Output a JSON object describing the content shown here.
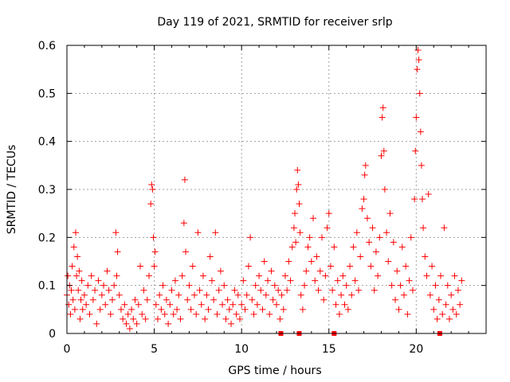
{
  "chart_data": {
    "type": "scatter",
    "title": "Day 119 of 2021, SRMTID for receiver srlp",
    "xlabel": "GPS time / hours",
    "ylabel": "SRMTID / TECUs",
    "xlim": [
      0,
      24
    ],
    "ylim": [
      0,
      0.6
    ],
    "xticks": [
      0,
      5,
      10,
      15,
      20
    ],
    "xtick_labels": [
      "0",
      "5",
      "10",
      "15",
      "20"
    ],
    "yticks": [
      0,
      0.1,
      0.2,
      0.3,
      0.4,
      0.5,
      0.6
    ],
    "ytick_labels": [
      "0",
      "0.1",
      "0.2",
      "0.3",
      "0.4",
      "0.5",
      "0.6"
    ],
    "grid": true,
    "marker": "+",
    "color": "#ff0000",
    "series": [
      {
        "name": "SRMTID",
        "points": [
          [
            0.0,
            0.08
          ],
          [
            0.05,
            0.12
          ],
          [
            0.1,
            0.06
          ],
          [
            0.15,
            0.1
          ],
          [
            0.2,
            0.04
          ],
          [
            0.25,
            0.09
          ],
          [
            0.3,
            0.14
          ],
          [
            0.35,
            0.07
          ],
          [
            0.4,
            0.18
          ],
          [
            0.45,
            0.05
          ],
          [
            0.5,
            0.21
          ],
          [
            0.55,
            0.12
          ],
          [
            0.6,
            0.16
          ],
          [
            0.65,
            0.09
          ],
          [
            0.7,
            0.13
          ],
          [
            0.75,
            0.03
          ],
          [
            0.8,
            0.07
          ],
          [
            0.85,
            0.11
          ],
          [
            0.9,
            0.05
          ],
          [
            1.0,
            0.08
          ],
          [
            1.1,
            0.06
          ],
          [
            1.2,
            0.1
          ],
          [
            1.3,
            0.04
          ],
          [
            1.4,
            0.12
          ],
          [
            1.5,
            0.07
          ],
          [
            1.6,
            0.09
          ],
          [
            1.7,
            0.02
          ],
          [
            1.8,
            0.11
          ],
          [
            1.9,
            0.05
          ],
          [
            2.0,
            0.08
          ],
          [
            2.1,
            0.1
          ],
          [
            2.2,
            0.06
          ],
          [
            2.3,
            0.13
          ],
          [
            2.4,
            0.09
          ],
          [
            2.5,
            0.04
          ],
          [
            2.6,
            0.07
          ],
          [
            2.7,
            0.1
          ],
          [
            2.8,
            0.21
          ],
          [
            2.85,
            0.12
          ],
          [
            2.9,
            0.17
          ],
          [
            3.0,
            0.08
          ],
          [
            3.1,
            0.05
          ],
          [
            3.2,
            0.03
          ],
          [
            3.3,
            0.06
          ],
          [
            3.4,
            0.02
          ],
          [
            3.5,
            0.04
          ],
          [
            3.6,
            0.01
          ],
          [
            3.7,
            0.05
          ],
          [
            3.8,
            0.03
          ],
          [
            3.9,
            0.07
          ],
          [
            4.0,
            0.02
          ],
          [
            4.1,
            0.06
          ],
          [
            4.2,
            0.14
          ],
          [
            4.3,
            0.04
          ],
          [
            4.4,
            0.09
          ],
          [
            4.5,
            0.03
          ],
          [
            4.6,
            0.07
          ],
          [
            4.7,
            0.12
          ],
          [
            4.8,
            0.27
          ],
          [
            4.85,
            0.31
          ],
          [
            4.9,
            0.3
          ],
          [
            4.95,
            0.2
          ],
          [
            5.0,
            0.14
          ],
          [
            5.05,
            0.17
          ],
          [
            5.1,
            0.06
          ],
          [
            5.2,
            0.03
          ],
          [
            5.3,
            0.08
          ],
          [
            5.4,
            0.05
          ],
          [
            5.5,
            0.1
          ],
          [
            5.6,
            0.04
          ],
          [
            5.7,
            0.07
          ],
          [
            5.8,
            0.02
          ],
          [
            5.9,
            0.06
          ],
          [
            6.0,
            0.09
          ],
          [
            6.1,
            0.04
          ],
          [
            6.2,
            0.11
          ],
          [
            6.3,
            0.05
          ],
          [
            6.4,
            0.08
          ],
          [
            6.5,
            0.03
          ],
          [
            6.6,
            0.12
          ],
          [
            6.7,
            0.23
          ],
          [
            6.75,
            0.32
          ],
          [
            6.8,
            0.17
          ],
          [
            6.9,
            0.07
          ],
          [
            7.0,
            0.1
          ],
          [
            7.1,
            0.05
          ],
          [
            7.2,
            0.14
          ],
          [
            7.3,
            0.08
          ],
          [
            7.4,
            0.04
          ],
          [
            7.5,
            0.21
          ],
          [
            7.6,
            0.09
          ],
          [
            7.7,
            0.06
          ],
          [
            7.8,
            0.12
          ],
          [
            7.9,
            0.03
          ],
          [
            8.0,
            0.08
          ],
          [
            8.1,
            0.05
          ],
          [
            8.2,
            0.16
          ],
          [
            8.3,
            0.11
          ],
          [
            8.4,
            0.07
          ],
          [
            8.5,
            0.21
          ],
          [
            8.6,
            0.04
          ],
          [
            8.7,
            0.09
          ],
          [
            8.8,
            0.13
          ],
          [
            8.9,
            0.06
          ],
          [
            9.0,
            0.1
          ],
          [
            9.1,
            0.03
          ],
          [
            9.2,
            0.07
          ],
          [
            9.3,
            0.05
          ],
          [
            9.4,
            0.02
          ],
          [
            9.5,
            0.06
          ],
          [
            9.6,
            0.09
          ],
          [
            9.7,
            0.04
          ],
          [
            9.8,
            0.08
          ],
          [
            9.9,
            0.03
          ],
          [
            10.0,
            0.06
          ],
          [
            10.1,
            0.11
          ],
          [
            10.2,
            0.05
          ],
          [
            10.3,
            0.08
          ],
          [
            10.4,
            0.14
          ],
          [
            10.5,
            0.2
          ],
          [
            10.6,
            0.07
          ],
          [
            10.7,
            0.04
          ],
          [
            10.8,
            0.1
          ],
          [
            10.9,
            0.06
          ],
          [
            11.0,
            0.12
          ],
          [
            11.1,
            0.09
          ],
          [
            11.2,
            0.05
          ],
          [
            11.3,
            0.15
          ],
          [
            11.4,
            0.08
          ],
          [
            11.5,
            0.11
          ],
          [
            11.6,
            0.04
          ],
          [
            11.7,
            0.13
          ],
          [
            11.8,
            0.07
          ],
          [
            11.9,
            0.1
          ],
          [
            12.0,
            0.06
          ],
          [
            12.1,
            0.09
          ],
          [
            12.2,
            0.03
          ],
          [
            12.3,
            0.08
          ],
          [
            12.4,
            0.05
          ],
          [
            12.5,
            0.12
          ],
          [
            12.6,
            0.09
          ],
          [
            12.7,
            0.15
          ],
          [
            12.8,
            0.11
          ],
          [
            12.9,
            0.18
          ],
          [
            13.0,
            0.22
          ],
          [
            13.05,
            0.25
          ],
          [
            13.1,
            0.19
          ],
          [
            13.15,
            0.3
          ],
          [
            13.2,
            0.34
          ],
          [
            13.25,
            0.31
          ],
          [
            13.3,
            0.27
          ],
          [
            13.35,
            0.21
          ],
          [
            13.4,
            0.08
          ],
          [
            13.5,
            0.05
          ],
          [
            13.6,
            0.1
          ],
          [
            13.7,
            0.13
          ],
          [
            13.8,
            0.18
          ],
          [
            13.9,
            0.2
          ],
          [
            14.0,
            0.15
          ],
          [
            14.1,
            0.24
          ],
          [
            14.2,
            0.11
          ],
          [
            14.3,
            0.16
          ],
          [
            14.4,
            0.09
          ],
          [
            14.5,
            0.13
          ],
          [
            14.6,
            0.2
          ],
          [
            14.7,
            0.07
          ],
          [
            14.8,
            0.12
          ],
          [
            14.9,
            0.22
          ],
          [
            15.0,
            0.25
          ],
          [
            15.1,
            0.14
          ],
          [
            15.2,
            0.09
          ],
          [
            15.3,
            0.18
          ],
          [
            15.4,
            0.06
          ],
          [
            15.5,
            0.11
          ],
          [
            15.6,
            0.04
          ],
          [
            15.7,
            0.08
          ],
          [
            15.8,
            0.12
          ],
          [
            15.9,
            0.06
          ],
          [
            16.0,
            0.1
          ],
          [
            16.1,
            0.05
          ],
          [
            16.2,
            0.14
          ],
          [
            16.3,
            0.08
          ],
          [
            16.4,
            0.18
          ],
          [
            16.5,
            0.11
          ],
          [
            16.6,
            0.21
          ],
          [
            16.7,
            0.09
          ],
          [
            16.8,
            0.16
          ],
          [
            16.9,
            0.26
          ],
          [
            17.0,
            0.28
          ],
          [
            17.05,
            0.33
          ],
          [
            17.1,
            0.35
          ],
          [
            17.2,
            0.24
          ],
          [
            17.3,
            0.19
          ],
          [
            17.4,
            0.14
          ],
          [
            17.5,
            0.22
          ],
          [
            17.6,
            0.09
          ],
          [
            17.7,
            0.17
          ],
          [
            17.8,
            0.12
          ],
          [
            17.9,
            0.2
          ],
          [
            18.0,
            0.37
          ],
          [
            18.05,
            0.45
          ],
          [
            18.1,
            0.47
          ],
          [
            18.15,
            0.38
          ],
          [
            18.2,
            0.3
          ],
          [
            18.3,
            0.21
          ],
          [
            18.4,
            0.15
          ],
          [
            18.5,
            0.25
          ],
          [
            18.6,
            0.1
          ],
          [
            18.7,
            0.19
          ],
          [
            18.8,
            0.07
          ],
          [
            18.9,
            0.13
          ],
          [
            19.0,
            0.05
          ],
          [
            19.1,
            0.1
          ],
          [
            19.2,
            0.18
          ],
          [
            19.3,
            0.08
          ],
          [
            19.4,
            0.14
          ],
          [
            19.5,
            0.04
          ],
          [
            19.6,
            0.11
          ],
          [
            19.7,
            0.2
          ],
          [
            19.8,
            0.09
          ],
          [
            19.9,
            0.28
          ],
          [
            19.95,
            0.38
          ],
          [
            20.0,
            0.45
          ],
          [
            20.05,
            0.55
          ],
          [
            20.1,
            0.59
          ],
          [
            20.15,
            0.57
          ],
          [
            20.2,
            0.5
          ],
          [
            20.25,
            0.42
          ],
          [
            20.3,
            0.35
          ],
          [
            20.35,
            0.28
          ],
          [
            20.4,
            0.22
          ],
          [
            20.5,
            0.16
          ],
          [
            20.6,
            0.12
          ],
          [
            20.7,
            0.29
          ],
          [
            20.8,
            0.08
          ],
          [
            20.9,
            0.14
          ],
          [
            21.0,
            0.05
          ],
          [
            21.1,
            0.1
          ],
          [
            21.2,
            0.03
          ],
          [
            21.3,
            0.07
          ],
          [
            21.4,
            0.12
          ],
          [
            21.5,
            0.04
          ],
          [
            21.6,
            0.22
          ],
          [
            21.7,
            0.06
          ],
          [
            21.8,
            0.1
          ],
          [
            21.9,
            0.03
          ],
          [
            22.0,
            0.08
          ],
          [
            22.1,
            0.05
          ],
          [
            22.2,
            0.12
          ],
          [
            22.3,
            0.04
          ],
          [
            22.4,
            0.09
          ],
          [
            22.5,
            0.06
          ],
          [
            22.6,
            0.11
          ]
        ]
      }
    ],
    "zero_points_x": [
      12.25,
      13.3,
      15.3,
      21.35
    ]
  }
}
